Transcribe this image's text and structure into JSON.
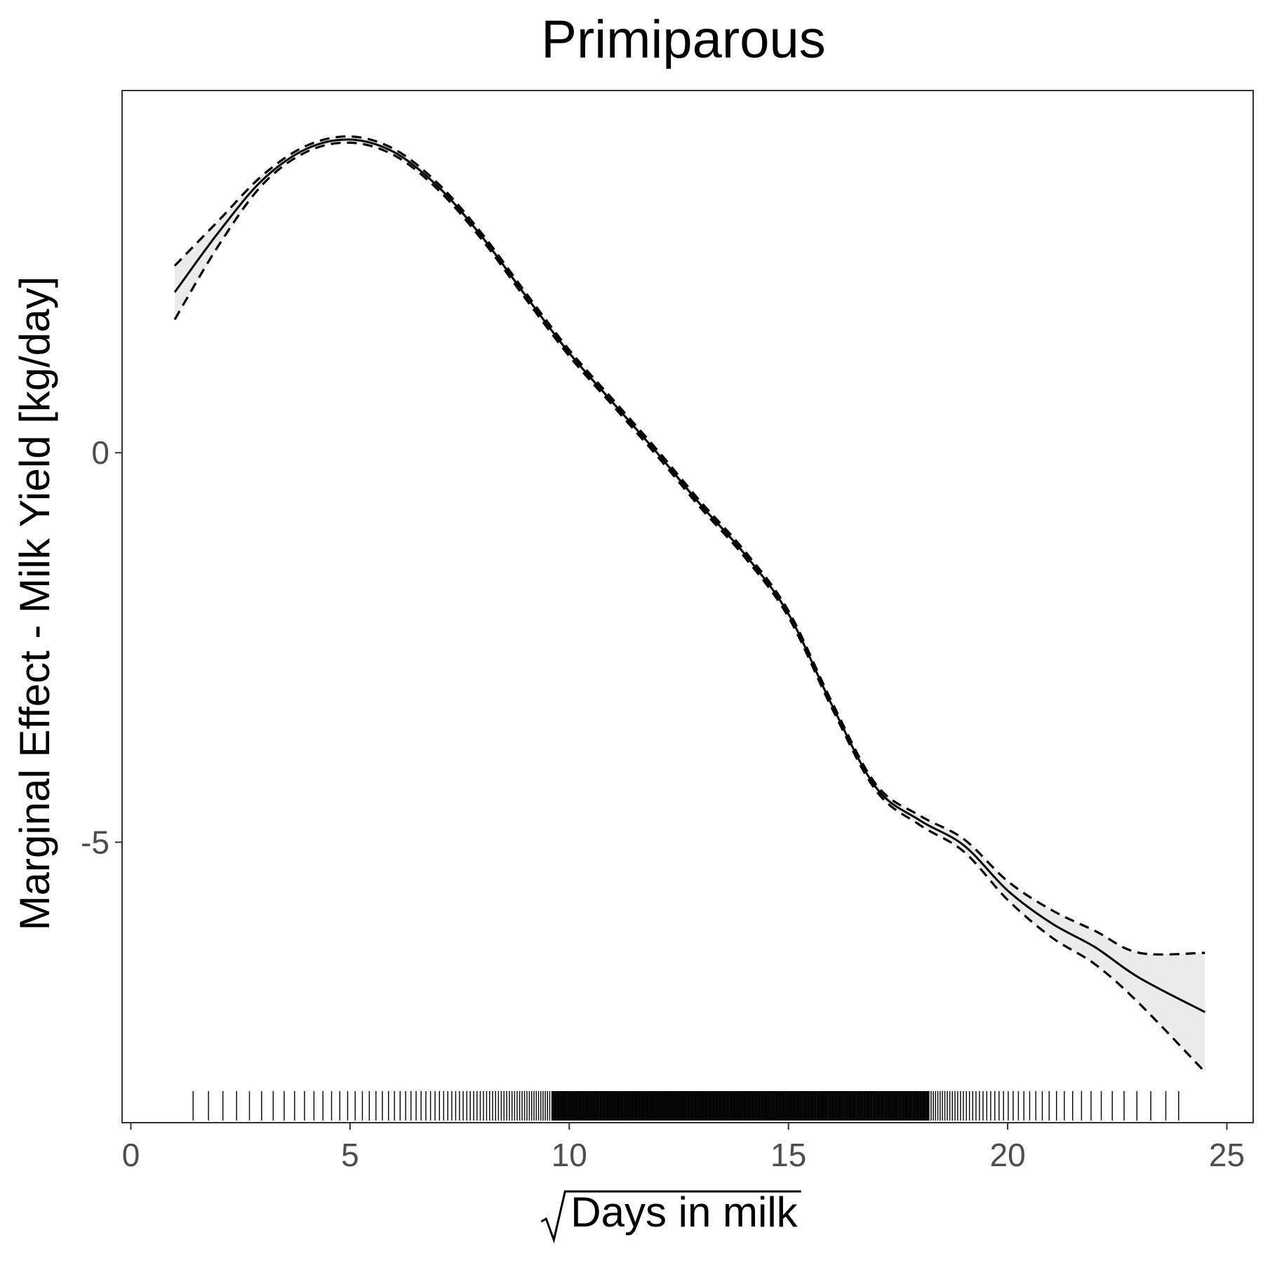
{
  "chart_data": {
    "type": "line",
    "title": "Primiparous",
    "xlabel": "Days in milk",
    "xlabel_prefix": "√",
    "ylabel": "Marginal Effect - Milk Yield [kg/day]",
    "xlim": [
      -0.2,
      25.6
    ],
    "ylim": [
      -8.6,
      4.65
    ],
    "x_ticks": [
      {
        "value": 0,
        "label": "0"
      },
      {
        "value": 5,
        "label": "5"
      },
      {
        "value": 10,
        "label": "10"
      },
      {
        "value": 15,
        "label": "15"
      },
      {
        "value": 20,
        "label": "20"
      },
      {
        "value": 25,
        "label": "25"
      }
    ],
    "y_ticks": [
      {
        "value": 0,
        "label": "0"
      },
      {
        "value": -5,
        "label": "-5"
      }
    ],
    "grid": false,
    "series": [
      {
        "role": "fit",
        "x": [
          1.0,
          2.0,
          3.0,
          4.0,
          5.0,
          6.0,
          7.0,
          8.0,
          9.0,
          10.0,
          11.0,
          12.0,
          13.0,
          14.0,
          15.0,
          16.0,
          17.0,
          18.0,
          19.0,
          20.0,
          21.0,
          22.0,
          23.0,
          24.5
        ],
        "y": [
          2.06,
          2.83,
          3.5,
          3.9,
          4.02,
          3.86,
          3.42,
          2.78,
          2.02,
          1.28,
          0.64,
          0.0,
          -0.67,
          -1.3,
          -2.07,
          -3.25,
          -4.3,
          -4.72,
          -5.04,
          -5.62,
          -6.04,
          -6.35,
          -6.74,
          -7.18
        ]
      },
      {
        "role": "upper_ci",
        "x": [
          1.0,
          2.0,
          3.0,
          4.0,
          5.0,
          6.0,
          7.0,
          8.0,
          9.0,
          10.0,
          11.0,
          12.0,
          13.0,
          14.0,
          15.0,
          16.0,
          17.0,
          18.0,
          19.0,
          20.0,
          21.0,
          22.0,
          23.0,
          24.5
        ],
        "y": [
          2.4,
          2.98,
          3.56,
          3.94,
          4.06,
          3.9,
          3.46,
          2.82,
          2.06,
          1.32,
          0.68,
          0.04,
          -0.63,
          -1.26,
          -2.03,
          -3.21,
          -4.26,
          -4.66,
          -4.96,
          -5.5,
          -5.87,
          -6.14,
          -6.42,
          -6.42
        ]
      },
      {
        "role": "lower_ci",
        "x": [
          1.0,
          2.0,
          3.0,
          4.0,
          5.0,
          6.0,
          7.0,
          8.0,
          9.0,
          10.0,
          11.0,
          12.0,
          13.0,
          14.0,
          15.0,
          16.0,
          17.0,
          18.0,
          19.0,
          20.0,
          21.0,
          22.0,
          23.0,
          24.5
        ],
        "y": [
          1.71,
          2.66,
          3.44,
          3.86,
          3.98,
          3.82,
          3.38,
          2.74,
          1.98,
          1.24,
          0.6,
          -0.04,
          -0.71,
          -1.34,
          -2.11,
          -3.29,
          -4.34,
          -4.78,
          -5.12,
          -5.74,
          -6.22,
          -6.57,
          -7.07,
          -7.95
        ]
      }
    ],
    "rug": {
      "min": 1.42,
      "max": 23.9,
      "dense_start": 9.6,
      "dense_end": 18.2
    }
  }
}
